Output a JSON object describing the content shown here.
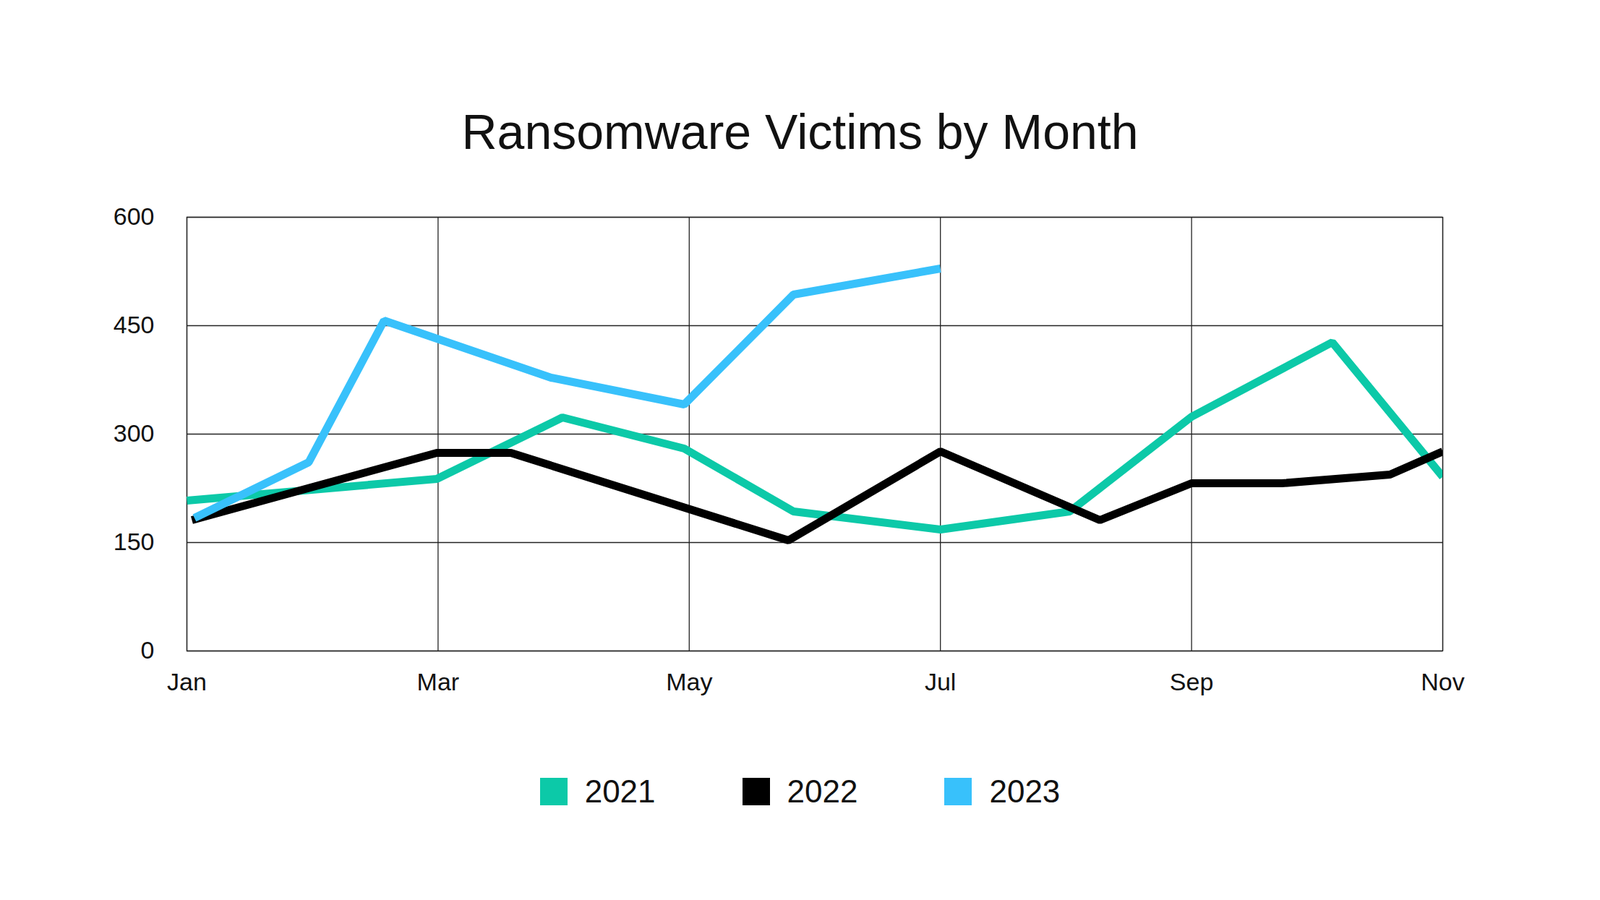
{
  "chart_data": {
    "type": "line",
    "title": "Ransomware Victims by Month",
    "xlim": [
      1,
      11
    ],
    "xticks": [
      {
        "value": 1,
        "label": "Jan"
      },
      {
        "value": 3,
        "label": "Mar"
      },
      {
        "value": 5,
        "label": "May"
      },
      {
        "value": 7,
        "label": "Jul"
      },
      {
        "value": 9,
        "label": "Sep"
      },
      {
        "value": 11,
        "label": "Nov"
      }
    ],
    "ylim": [
      0,
      600
    ],
    "yticks": [
      0,
      150,
      300,
      450,
      600
    ],
    "grid": true,
    "legend": "bottom",
    "series": [
      {
        "name": "2021",
        "color": "#0cc9a8",
        "x": [
          1.0,
          2.99,
          3.99,
          4.96,
          5.83,
          7.0,
          8.03,
          9.0,
          10.12,
          11.0
        ],
        "values": [
          208,
          238,
          323,
          280,
          193,
          168,
          193,
          324,
          427,
          241
        ]
      },
      {
        "name": "2022",
        "color": "#000000",
        "x": [
          1.04,
          2.99,
          3.58,
          5.79,
          7.0,
          8.27,
          9.0,
          9.72,
          10.58,
          11.0
        ],
        "values": [
          181,
          274,
          274,
          153,
          276,
          181,
          232,
          232,
          244,
          276
        ]
      },
      {
        "name": "2023",
        "color": "#38c1fb",
        "x": [
          1.06,
          1.97,
          2.57,
          3.9,
          4.96,
          5.83,
          7.0
        ],
        "values": [
          184,
          261,
          457,
          378,
          341,
          493,
          529
        ]
      }
    ]
  }
}
